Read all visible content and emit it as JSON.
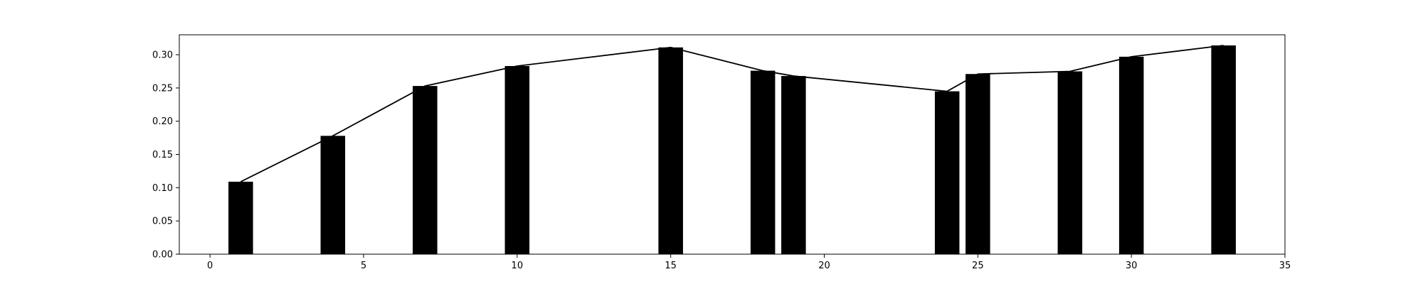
{
  "chart_data": {
    "type": "bar",
    "title": "",
    "xlabel": "",
    "ylabel": "",
    "xlim": [
      -1,
      35
    ],
    "ylim": [
      0,
      0.33
    ],
    "x_ticks": [
      0,
      5,
      10,
      15,
      20,
      25,
      30,
      35
    ],
    "x_tick_labels": [
      "0",
      "5",
      "10",
      "15",
      "20",
      "25",
      "30",
      "35"
    ],
    "y_ticks": [
      0.0,
      0.05,
      0.1,
      0.15,
      0.2,
      0.25,
      0.3
    ],
    "y_tick_labels": [
      "0.00",
      "0.05",
      "0.10",
      "0.15",
      "0.20",
      "0.25",
      "0.30"
    ],
    "grid": false,
    "bar_width": 0.8,
    "x": [
      1,
      4,
      7,
      10,
      15,
      18,
      19,
      24,
      25,
      28,
      30,
      33
    ],
    "values": [
      0.109,
      0.178,
      0.253,
      0.283,
      0.311,
      0.276,
      0.268,
      0.245,
      0.271,
      0.275,
      0.297,
      0.314
    ],
    "line_overlay": true,
    "bar_color": "#000000",
    "line_color": "#000000"
  }
}
